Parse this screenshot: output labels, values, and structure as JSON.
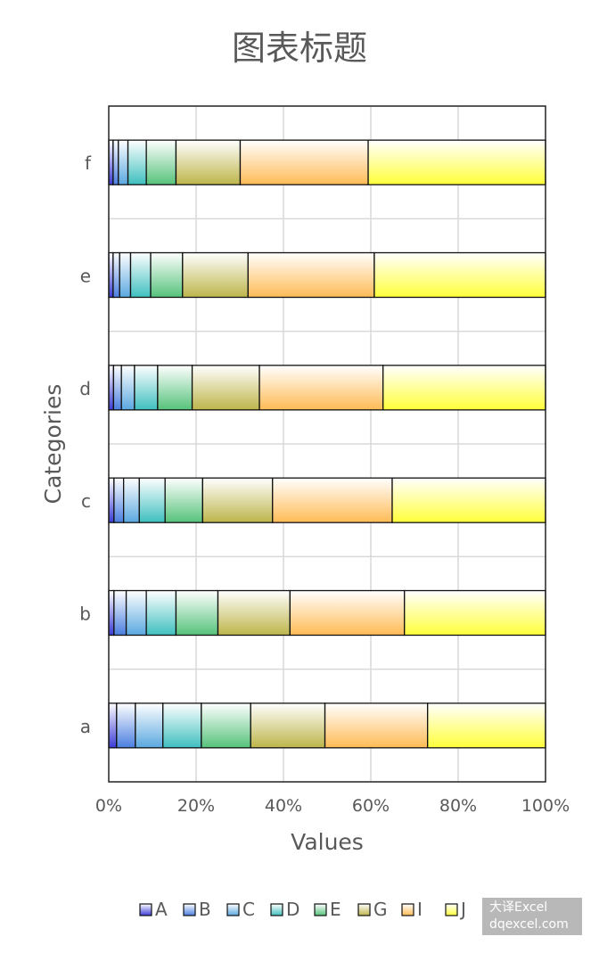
{
  "watermark": {
    "line1": "大译Excel",
    "line2": "dqexcel.com"
  },
  "chart_data": {
    "type": "bar",
    "orientation": "horizontal",
    "stacking": "percent",
    "title": "图表标题",
    "xlabel": "Values",
    "ylabel": "Categories",
    "xlim": [
      0,
      100
    ],
    "x_ticks": [
      "0%",
      "20%",
      "40%",
      "60%",
      "80%",
      "100%"
    ],
    "grid": true,
    "legend": "bottom",
    "categories": [
      "a",
      "b",
      "c",
      "d",
      "e",
      "f"
    ],
    "series": [
      {
        "name": "A",
        "values": [
          1.8,
          1.2,
          1.2,
          1.1,
          1.0,
          1.0
        ],
        "color_top": "#ffffff",
        "color_bottom": "#3b3bd6"
      },
      {
        "name": "B",
        "values": [
          4.3,
          2.8,
          2.2,
          1.8,
          1.5,
          1.2
        ],
        "color_top": "#ffffff",
        "color_bottom": "#4a7ee0"
      },
      {
        "name": "C",
        "values": [
          6.3,
          4.6,
          3.6,
          3.0,
          2.5,
          2.2
        ],
        "color_top": "#ffffff",
        "color_bottom": "#5aa8e0"
      },
      {
        "name": "D",
        "values": [
          8.8,
          6.8,
          5.9,
          5.3,
          4.6,
          4.2
        ],
        "color_top": "#ffffff",
        "color_bottom": "#3fbfbf"
      },
      {
        "name": "E",
        "values": [
          11.3,
          9.6,
          8.6,
          7.9,
          7.3,
          6.8
        ],
        "color_top": "#ffffff",
        "color_bottom": "#55c27a"
      },
      {
        "name": "G",
        "values": [
          17.0,
          16.5,
          16.0,
          15.4,
          15.0,
          14.7
        ],
        "color_top": "#ffffff",
        "color_bottom": "#bdb54a"
      },
      {
        "name": "I",
        "values": [
          23.5,
          26.2,
          27.4,
          28.3,
          28.9,
          29.3
        ],
        "color_top": "#ffffff",
        "color_bottom": "#ffbb55"
      },
      {
        "name": "J",
        "values": [
          27.0,
          32.3,
          35.1,
          37.2,
          39.2,
          40.6
        ],
        "color_top": "#ffffff",
        "color_bottom": "#ffff3a"
      }
    ]
  }
}
